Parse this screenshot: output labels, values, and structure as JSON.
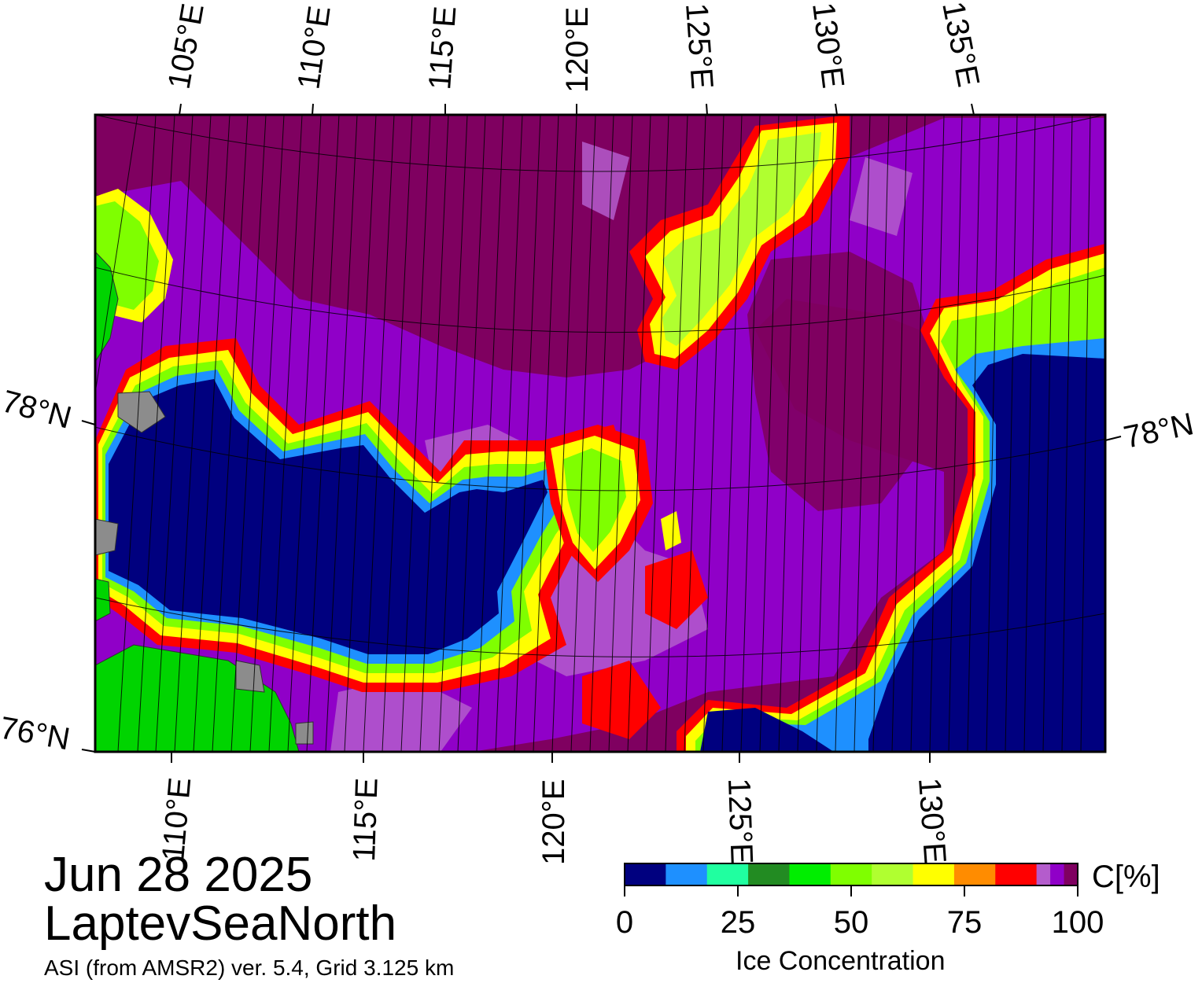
{
  "map": {
    "date": "Jun 28 2025",
    "region": "LaptevSeaNorth",
    "product": "ASI (from AMSR2) ver. 5.4,  Grid 3.125 km",
    "top_longitude_labels": [
      "105°E",
      "110°E",
      "115°E",
      "120°E",
      "125°E",
      "130°E",
      "135°E"
    ],
    "bottom_longitude_labels": [
      "110°E",
      "115°E",
      "120°E",
      "125°E",
      "130°E"
    ],
    "latitude_labels": {
      "left_upper": "78°N",
      "left_lower": "76°N",
      "right": "78°N"
    },
    "colors": {
      "land": "#00d400",
      "land_gray": "#8c8c8c",
      "open_water": "#00007f",
      "ice_dense": "#7f0060",
      "ice_purple": "#9000c8",
      "ice_lilac": "#b45ccc",
      "edge_red": "#ff0000",
      "edge_yellow": "#ffff00",
      "edge_green": "#90ff00",
      "edge_blue": "#1e90ff"
    }
  },
  "legend": {
    "title": "Ice Concentration",
    "unit": "C[%]",
    "tick_labels": [
      "0",
      "25",
      "50",
      "75",
      "100"
    ],
    "colors": [
      "#00007f",
      "#1e90ff",
      "#20ffa0",
      "#228b22",
      "#00ee00",
      "#7fff00",
      "#b0ff30",
      "#ffff00",
      "#ff8c00",
      "#ff0000",
      "#b45ccc",
      "#9000c8",
      "#7f0060"
    ]
  }
}
